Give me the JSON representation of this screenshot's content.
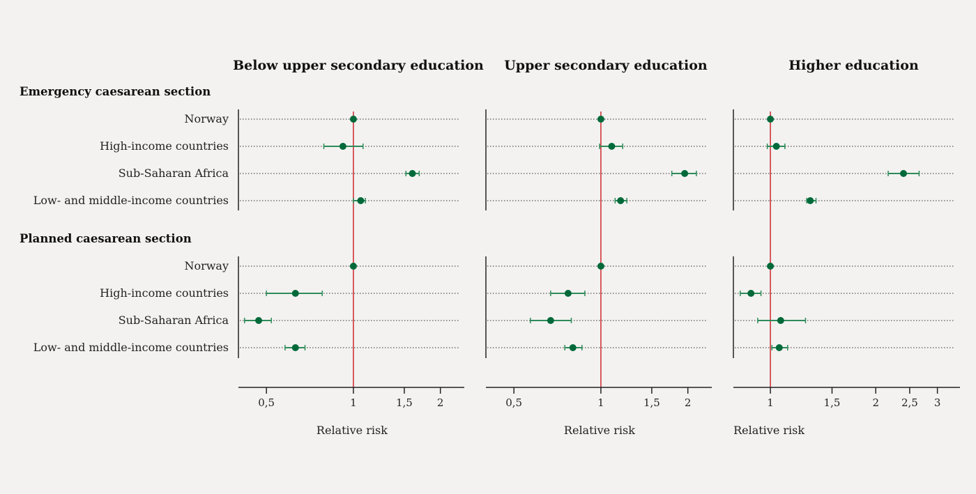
{
  "chart_data": {
    "type": "forest",
    "x_scale": "log",
    "reference_line": 1,
    "colors": {
      "point": "#00693a",
      "ci": "#2e8b5a",
      "reference": "#d0353a",
      "axis": "#222222",
      "grid": "#555555",
      "background": "#f3f2f0"
    },
    "grid": "dotted horizontal lines per row",
    "sections": [
      {
        "label": "Emergency caesarean section",
        "rows": [
          "Norway",
          "High-income countries",
          "Sub-Saharan Africa",
          "Low- and middle-income countries"
        ]
      },
      {
        "label": "Planned caesarean section",
        "rows": [
          "Norway",
          "High-income countries",
          "Sub-Saharan Africa",
          "Low- and middle-income countries"
        ]
      }
    ],
    "panels": [
      {
        "title": "Below upper secondary education",
        "xlabel": "Relative risk",
        "xlim": [
          0.4,
          2.42
        ],
        "ticks": [
          {
            "value": 0.5,
            "label": "0,5"
          },
          {
            "value": 1,
            "label": "1"
          },
          {
            "value": 1.5,
            "label": "1,5"
          },
          {
            "value": 2,
            "label": "2"
          }
        ],
        "data": [
          [
            {
              "rr": 1.0
            },
            {
              "rr": 0.92,
              "lo": 0.79,
              "hi": 1.08
            },
            {
              "rr": 1.6,
              "lo": 1.52,
              "hi": 1.69
            },
            {
              "rr": 1.06,
              "lo": 1.0,
              "hi": 1.1
            }
          ],
          [
            {
              "rr": 1.0
            },
            {
              "rr": 0.63,
              "lo": 0.5,
              "hi": 0.78
            },
            {
              "rr": 0.47,
              "lo": 0.42,
              "hi": 0.52
            },
            {
              "rr": 0.63,
              "lo": 0.58,
              "hi": 0.68
            }
          ]
        ]
      },
      {
        "title": "Upper secondary education",
        "xlabel": "Relative risk",
        "xlim": [
          0.4,
          2.42
        ],
        "ticks": [
          {
            "value": 0.5,
            "label": "0,5"
          },
          {
            "value": 1,
            "label": "1"
          },
          {
            "value": 1.5,
            "label": "1,5"
          },
          {
            "value": 2,
            "label": "2"
          }
        ],
        "data": [
          [
            {
              "rr": 1.0
            },
            {
              "rr": 1.09,
              "lo": 0.99,
              "hi": 1.19
            },
            {
              "rr": 1.95,
              "lo": 1.76,
              "hi": 2.14
            },
            {
              "rr": 1.17,
              "lo": 1.12,
              "hi": 1.23
            }
          ],
          [
            {
              "rr": 1.0
            },
            {
              "rr": 0.77,
              "lo": 0.67,
              "hi": 0.88
            },
            {
              "rr": 0.67,
              "lo": 0.57,
              "hi": 0.79
            },
            {
              "rr": 0.8,
              "lo": 0.75,
              "hi": 0.86
            }
          ]
        ]
      },
      {
        "title": "Higher education",
        "xlabel": "Relative risk",
        "xlim": [
          0.784,
          3.48
        ],
        "ticks": [
          {
            "value": 1,
            "label": "1"
          },
          {
            "value": 1.5,
            "label": "1,5"
          },
          {
            "value": 2,
            "label": "2"
          },
          {
            "value": 2.5,
            "label": "2,5"
          },
          {
            "value": 3,
            "label": "3"
          }
        ],
        "data": [
          [
            {
              "rr": 1.0
            },
            {
              "rr": 1.04,
              "lo": 0.98,
              "hi": 1.1
            },
            {
              "rr": 2.4,
              "lo": 2.17,
              "hi": 2.66
            },
            {
              "rr": 1.3,
              "lo": 1.27,
              "hi": 1.35
            }
          ],
          [
            {
              "rr": 1.0
            },
            {
              "rr": 0.88,
              "lo": 0.82,
              "hi": 0.94
            },
            {
              "rr": 1.07,
              "lo": 0.92,
              "hi": 1.26
            },
            {
              "rr": 1.06,
              "lo": 1.01,
              "hi": 1.12
            }
          ]
        ]
      }
    ]
  }
}
